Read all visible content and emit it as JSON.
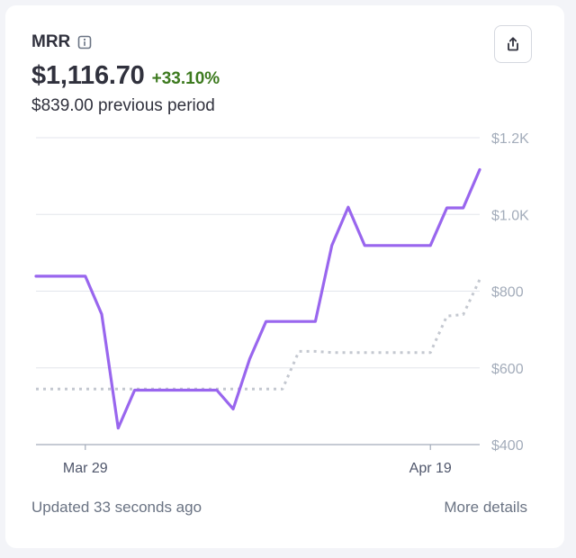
{
  "header": {
    "title": "MRR",
    "value": "$1,116.70",
    "change": "+33.10%",
    "previous": "$839.00 previous period"
  },
  "footer": {
    "updated": "Updated 33 seconds ago",
    "more_details": "More details"
  },
  "icons": {
    "info": "info-icon",
    "share": "share-icon"
  },
  "colors": {
    "current": "#9966ee",
    "previous": "#c4c8d0",
    "positive": "#3d7a1f",
    "grid": "#e3e6ec"
  },
  "chart_data": {
    "type": "line",
    "ylim": [
      400,
      1200
    ],
    "y_ticks": [
      400,
      600,
      800,
      1000,
      1200
    ],
    "y_tick_labels": [
      "$400",
      "$600",
      "$800",
      "$1.0K",
      "$1.2K"
    ],
    "x_ticks": [
      {
        "label": "Mar 29",
        "x": 3
      },
      {
        "label": "Apr 19",
        "x": 24
      }
    ],
    "grid": true,
    "x_domain": [
      0,
      27
    ],
    "series": [
      {
        "style": "solid",
        "color": "#9966ee",
        "points": [
          [
            0,
            839
          ],
          [
            1,
            839
          ],
          [
            2,
            839
          ],
          [
            3,
            839
          ],
          [
            4,
            740
          ],
          [
            5,
            443
          ],
          [
            6,
            542
          ],
          [
            7,
            542
          ],
          [
            8,
            542
          ],
          [
            9,
            542
          ],
          [
            10,
            542
          ],
          [
            11,
            542
          ],
          [
            12,
            493
          ],
          [
            13,
            623
          ],
          [
            14,
            721
          ],
          [
            15,
            721
          ],
          [
            16,
            721
          ],
          [
            17,
            721
          ],
          [
            18,
            919
          ],
          [
            19,
            1019
          ],
          [
            20,
            919
          ],
          [
            21,
            919
          ],
          [
            22,
            919
          ],
          [
            23,
            919
          ],
          [
            24,
            919
          ],
          [
            25,
            1017
          ],
          [
            26,
            1017
          ],
          [
            27,
            1116.7
          ]
        ]
      },
      {
        "style": "dotted",
        "color": "#c4c8d0",
        "points": [
          [
            0,
            545
          ],
          [
            1,
            545
          ],
          [
            2,
            545
          ],
          [
            3,
            545
          ],
          [
            4,
            545
          ],
          [
            5,
            545
          ],
          [
            6,
            545
          ],
          [
            7,
            545
          ],
          [
            8,
            545
          ],
          [
            9,
            545
          ],
          [
            10,
            545
          ],
          [
            11,
            545
          ],
          [
            12,
            545
          ],
          [
            13,
            545
          ],
          [
            14,
            545
          ],
          [
            15,
            545
          ],
          [
            16,
            643
          ],
          [
            17,
            643
          ],
          [
            18,
            640
          ],
          [
            19,
            640
          ],
          [
            20,
            640
          ],
          [
            21,
            640
          ],
          [
            22,
            640
          ],
          [
            23,
            640
          ],
          [
            24,
            640
          ],
          [
            25,
            735
          ],
          [
            26,
            739
          ],
          [
            27,
            830
          ]
        ]
      }
    ]
  }
}
